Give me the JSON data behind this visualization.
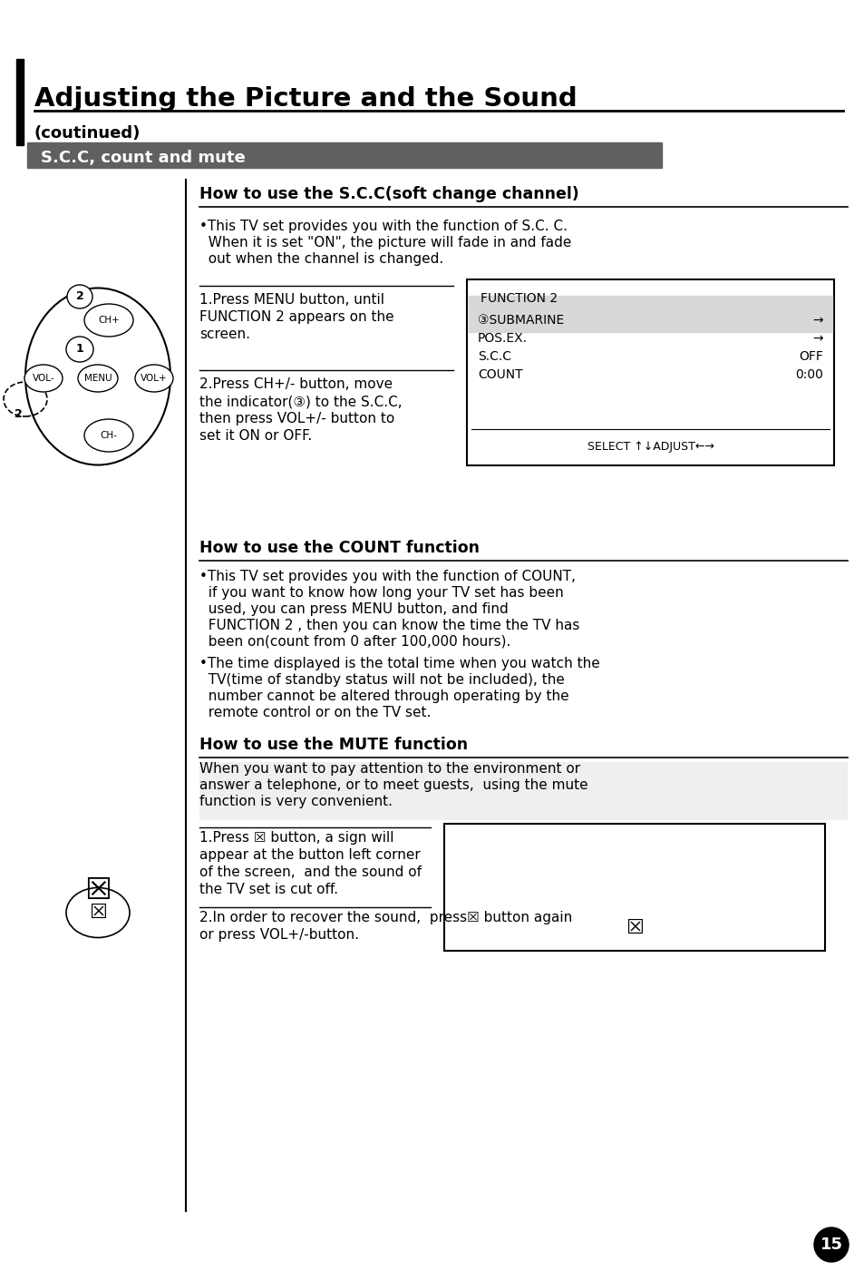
{
  "bg_color": "#ffffff",
  "title_text": "Adjusting the Picture and the Sound",
  "subtitle_text": "(coutinued)",
  "section_text": "S.C.C, count and mute",
  "heading1": "How to use the S.C.C(soft change channel)",
  "heading2": "How to use the COUNT function",
  "heading3": "How to use the MUTE function",
  "bullet1_lines": [
    "•This TV set provides you with the function of S.C. C.",
    "  When it is set \"ON\", the picture will fade in and fade",
    "  out when the channel is changed."
  ],
  "step1_lines": [
    "1.Press MENU button, until",
    "FUNCTION 2 appears on the",
    "screen."
  ],
  "step2_lines": [
    "2.Press CH+/- button, move",
    "the indicator(③) to the S.C.C,",
    "then press VOL+/- button to",
    "set it ON or OFF."
  ],
  "box_title": "FUNCTION 2",
  "box_items": [
    [
      "③SUBMARINE",
      "→"
    ],
    [
      "POS.EX.",
      "→"
    ],
    [
      "S.C.C",
      "OFF"
    ],
    [
      "COUNT",
      "0:00"
    ]
  ],
  "box_select": "SELECT ↑↓ADJUST←→",
  "bullet2_lines": [
    "•This TV set provides you with the function of COUNT,",
    "  if you want to know how long your TV set has been",
    "  used, you can press MENU button, and find",
    "  FUNCTION 2 , then you can know the time the TV has",
    "  been on(count from 0 after 100,000 hours)."
  ],
  "bullet3_lines": [
    "•The time displayed is the total time when you watch the",
    "  TV(time of standby status will not be included), the",
    "  number cannot be altered through operating by the",
    "  remote control or on the TV set."
  ],
  "mute_intro_lines": [
    "When you want to pay attention to the environment or",
    "answer a telephone, or to meet guests,  using the mute",
    "function is very convenient."
  ],
  "mute_step1_lines": [
    "1.Press ☒ button, a sign will",
    "appear at the button left corner",
    "of the screen,  and the sound of",
    "the TV set is cut off."
  ],
  "mute_step2_lines": [
    "2.In order to recover the sound,  press☒ button again",
    "or press VOL+/-button."
  ],
  "page_number": "15"
}
